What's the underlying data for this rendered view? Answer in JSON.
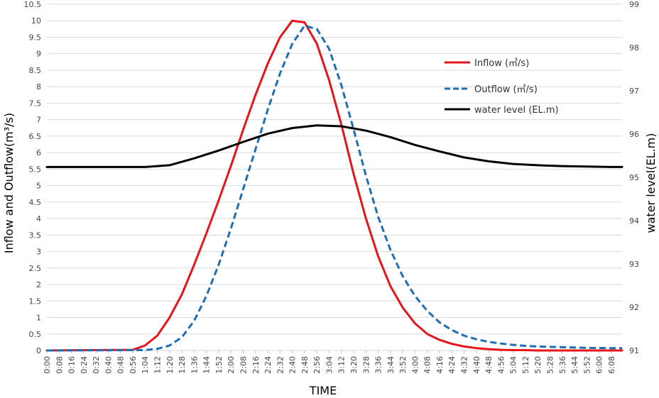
{
  "chart_data": {
    "type": "line",
    "xlabel": "TIME",
    "ylabel": "Inflow and Outflow(m³/s)",
    "y2label": "water level(EL.m)",
    "ylim": [
      0,
      10.5
    ],
    "y_ticks": [
      "0",
      "0.5",
      "1",
      "1.5",
      "2",
      "2.5",
      "3",
      "3.5",
      "4",
      "4.5",
      "5",
      "5.5",
      "6",
      "6.5",
      "7",
      "7.5",
      "8",
      "8.5",
      "9",
      "9.5",
      "10",
      "10.5"
    ],
    "y2lim": [
      91,
      99
    ],
    "y2_ticks": [
      "91",
      "92",
      "93",
      "94",
      "95",
      "96",
      "97",
      "98",
      "99"
    ],
    "x_range_minutes": [
      0,
      375
    ],
    "x_ticks": [
      "0:00",
      "0:08",
      "0:16",
      "0:24",
      "0:32",
      "0:40",
      "0:48",
      "0:56",
      "1:04",
      "1:12",
      "1:20",
      "1:28",
      "1:36",
      "1:44",
      "1:52",
      "2:00",
      "2:08",
      "2:16",
      "2:24",
      "2:32",
      "2:40",
      "2:48",
      "2:56",
      "3:04",
      "3:12",
      "3:20",
      "3:28",
      "3:36",
      "3:44",
      "3:52",
      "4:00",
      "4:08",
      "4:16",
      "4:24",
      "4:32",
      "4:40",
      "4:48",
      "4:56",
      "5:04",
      "5:12",
      "5:20",
      "5:28",
      "5:36",
      "5:44",
      "5:52",
      "6:00",
      "6:08"
    ],
    "grid": "horizontal",
    "legend_position": "top-right",
    "series": [
      {
        "name": "Inflow (㎥/s)",
        "axis": "left",
        "color": "#e8141c",
        "dash": "solid",
        "x": [
          0,
          56,
          64,
          72,
          80,
          88,
          96,
          104,
          112,
          120,
          128,
          136,
          144,
          152,
          160,
          168,
          176,
          184,
          192,
          200,
          208,
          216,
          224,
          232,
          240,
          248,
          256,
          264,
          272,
          280,
          288,
          296,
          304,
          312,
          320,
          336,
          352,
          368,
          375
        ],
        "y": [
          0,
          0.02,
          0.15,
          0.45,
          1.0,
          1.7,
          2.6,
          3.55,
          4.55,
          5.6,
          6.7,
          7.75,
          8.7,
          9.5,
          10.0,
          9.95,
          9.3,
          8.2,
          6.85,
          5.35,
          4.0,
          2.85,
          1.95,
          1.3,
          0.82,
          0.5,
          0.32,
          0.2,
          0.12,
          0.07,
          0.04,
          0.02,
          0.01,
          0.01,
          0,
          0,
          0,
          0,
          0
        ]
      },
      {
        "name": "Outflow (㎥/s)",
        "axis": "left",
        "color": "#1f6db5",
        "dash": "dashed",
        "x": [
          0,
          64,
          72,
          80,
          88,
          96,
          104,
          112,
          120,
          128,
          136,
          144,
          152,
          160,
          168,
          176,
          184,
          192,
          200,
          208,
          216,
          224,
          232,
          240,
          248,
          256,
          264,
          272,
          280,
          288,
          296,
          304,
          312,
          320,
          336,
          352,
          368,
          375
        ],
        "y": [
          0,
          0.01,
          0.05,
          0.15,
          0.4,
          0.9,
          1.65,
          2.6,
          3.7,
          4.9,
          6.1,
          7.3,
          8.4,
          9.3,
          9.85,
          9.75,
          9.15,
          8.05,
          6.7,
          5.3,
          4.05,
          3.05,
          2.25,
          1.65,
          1.2,
          0.85,
          0.62,
          0.45,
          0.34,
          0.26,
          0.21,
          0.17,
          0.14,
          0.12,
          0.1,
          0.08,
          0.07,
          0.07
        ]
      },
      {
        "name": "water level (EL.m)",
        "axis": "right",
        "color": "#000000",
        "dash": "solid",
        "x": [
          0,
          40,
          64,
          80,
          96,
          112,
          128,
          144,
          160,
          176,
          192,
          208,
          224,
          240,
          256,
          272,
          288,
          304,
          320,
          336,
          352,
          368,
          375
        ],
        "y": [
          95.24,
          95.24,
          95.24,
          95.28,
          95.44,
          95.62,
          95.82,
          96.01,
          96.14,
          96.2,
          96.18,
          96.08,
          95.93,
          95.75,
          95.6,
          95.46,
          95.37,
          95.31,
          95.28,
          95.26,
          95.25,
          95.24,
          95.24
        ]
      }
    ]
  }
}
